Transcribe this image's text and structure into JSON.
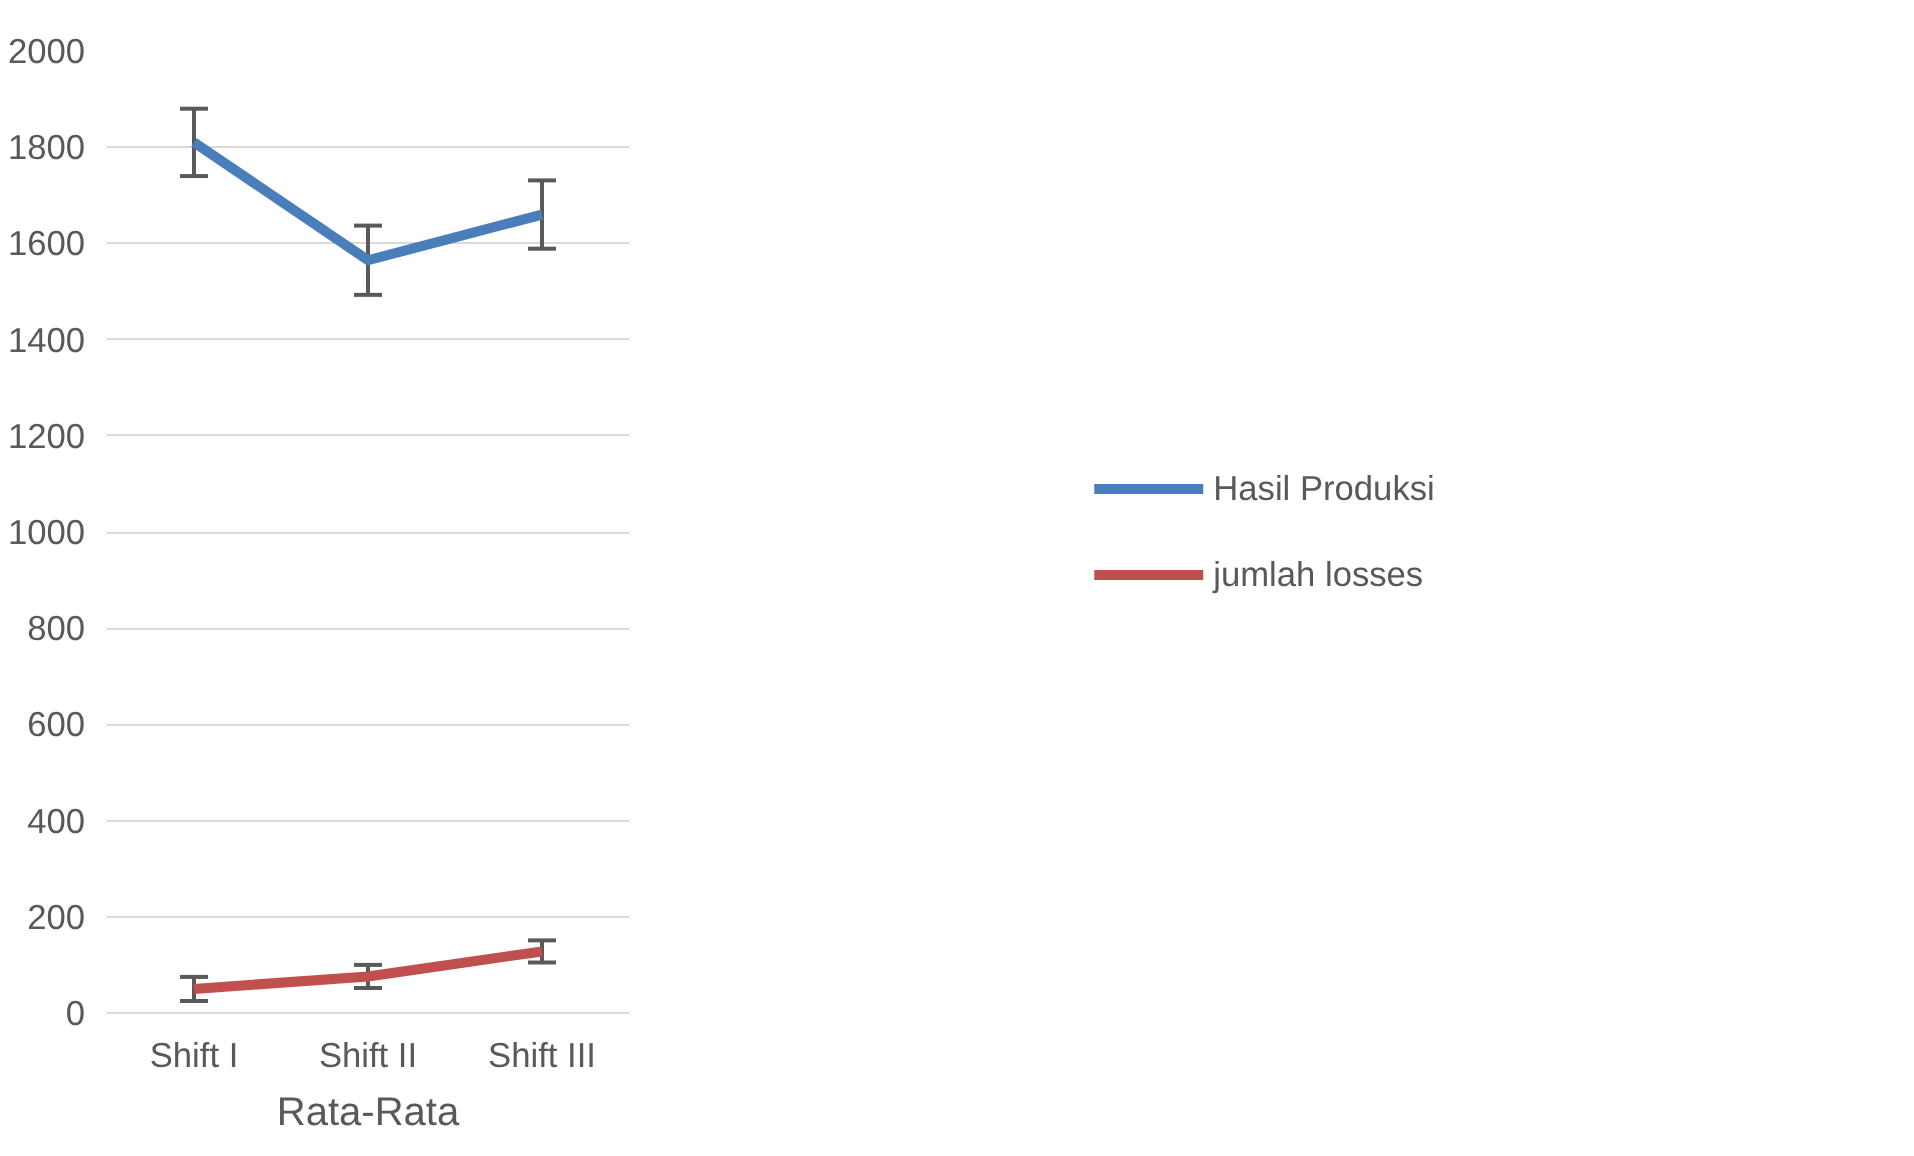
{
  "chart_data": {
    "type": "line",
    "categories": [
      "Shift I",
      "Shift II",
      "Shift III"
    ],
    "xlabel": "Rata-Rata",
    "series": [
      {
        "name": "Hasil Produksi",
        "color": "#4a7ebb",
        "values": [
          1810,
          1565,
          1660
        ],
        "errors": [
          70,
          72,
          71
        ]
      },
      {
        "name": "jumlah losses",
        "color": "#c0504d",
        "values": [
          50,
          76,
          128
        ],
        "errors": [
          25,
          24,
          23
        ]
      }
    ],
    "ylim": [
      0,
      2000
    ],
    "yticks": [
      0,
      200,
      400,
      600,
      800,
      1000,
      1200,
      1400,
      1600,
      1800,
      2000
    ],
    "grid": "y",
    "legend": "right",
    "marker": "none",
    "line_style": "solid"
  }
}
